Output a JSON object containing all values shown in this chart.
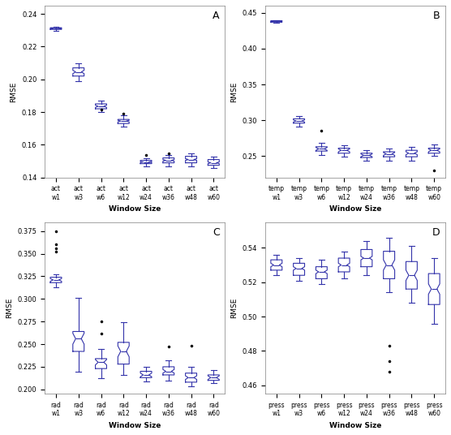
{
  "color": "#3333aa",
  "subplots": {
    "A": {
      "label": "A",
      "xlabel": "Window Size",
      "ylabel": "RMSE",
      "categories": [
        "act\nw1",
        "act\nw3",
        "act\nw6",
        "act\nw12",
        "act\nw24",
        "act\nw36",
        "act\nw48",
        "act\nw60"
      ],
      "boxes": [
        {
          "med": 0.231,
          "q1": 0.2305,
          "q3": 0.2315,
          "whislo": 0.2295,
          "whishi": 0.232,
          "cilo": 0.2308,
          "cihi": 0.2312,
          "fliers": []
        },
        {
          "med": 0.2045,
          "q1": 0.202,
          "q3": 0.207,
          "whislo": 0.199,
          "whishi": 0.21,
          "cilo": 0.2035,
          "cihi": 0.2055,
          "fliers": []
        },
        {
          "med": 0.1835,
          "q1": 0.182,
          "q3": 0.185,
          "whislo": 0.18,
          "whishi": 0.187,
          "cilo": 0.1828,
          "cihi": 0.1842,
          "fliers": [
            0.1815
          ]
        },
        {
          "med": 0.1745,
          "q1": 0.173,
          "q3": 0.1755,
          "whislo": 0.171,
          "whishi": 0.178,
          "cilo": 0.174,
          "cihi": 0.175,
          "fliers": [
            0.179
          ]
        },
        {
          "med": 0.1495,
          "q1": 0.1485,
          "q3": 0.1505,
          "whislo": 0.147,
          "whishi": 0.152,
          "cilo": 0.1492,
          "cihi": 0.1498,
          "fliers": [
            0.154
          ]
        },
        {
          "med": 0.1505,
          "q1": 0.149,
          "q3": 0.152,
          "whislo": 0.147,
          "whishi": 0.154,
          "cilo": 0.15,
          "cihi": 0.151,
          "fliers": [
            0.155
          ]
        },
        {
          "med": 0.151,
          "q1": 0.149,
          "q3": 0.153,
          "whislo": 0.147,
          "whishi": 0.155,
          "cilo": 0.1505,
          "cihi": 0.1515,
          "fliers": []
        },
        {
          "med": 0.149,
          "q1": 0.1475,
          "q3": 0.151,
          "whislo": 0.146,
          "whishi": 0.153,
          "cilo": 0.1485,
          "cihi": 0.1495,
          "fliers": []
        }
      ],
      "ylim": [
        0.14,
        0.245
      ]
    },
    "B": {
      "label": "B",
      "xlabel": "Window Size",
      "ylabel": "RMSE",
      "categories": [
        "temp\nw1",
        "temp\nw3",
        "temp\nw6",
        "temp\nw12",
        "temp\nw24",
        "temp\nw36",
        "temp\nw48",
        "temp\nw60"
      ],
      "boxes": [
        {
          "med": 0.438,
          "q1": 0.437,
          "q3": 0.439,
          "whislo": 0.436,
          "whishi": 0.44,
          "cilo": 0.4375,
          "cihi": 0.4385,
          "fliers": []
        },
        {
          "med": 0.299,
          "q1": 0.296,
          "q3": 0.302,
          "whislo": 0.291,
          "whishi": 0.306,
          "cilo": 0.2975,
          "cihi": 0.3005,
          "fliers": []
        },
        {
          "med": 0.26,
          "q1": 0.257,
          "q3": 0.263,
          "whislo": 0.252,
          "whishi": 0.268,
          "cilo": 0.258,
          "cihi": 0.262,
          "fliers": [
            0.285
          ]
        },
        {
          "med": 0.258,
          "q1": 0.254,
          "q3": 0.261,
          "whislo": 0.249,
          "whishi": 0.265,
          "cilo": 0.256,
          "cihi": 0.26,
          "fliers": []
        },
        {
          "med": 0.251,
          "q1": 0.248,
          "q3": 0.254,
          "whislo": 0.244,
          "whishi": 0.258,
          "cilo": 0.249,
          "cihi": 0.253,
          "fliers": []
        },
        {
          "med": 0.253,
          "q1": 0.249,
          "q3": 0.256,
          "whislo": 0.244,
          "whishi": 0.26,
          "cilo": 0.251,
          "cihi": 0.255,
          "fliers": []
        },
        {
          "med": 0.254,
          "q1": 0.249,
          "q3": 0.258,
          "whislo": 0.243,
          "whishi": 0.263,
          "cilo": 0.252,
          "cihi": 0.256,
          "fliers": []
        },
        {
          "med": 0.258,
          "q1": 0.254,
          "q3": 0.261,
          "whislo": 0.25,
          "whishi": 0.266,
          "cilo": 0.256,
          "cihi": 0.26,
          "fliers": [
            0.23
          ]
        }
      ],
      "ylim": [
        0.22,
        0.46
      ]
    },
    "C": {
      "label": "C",
      "xlabel": "Window Size",
      "ylabel": "RMSE",
      "categories": [
        "rad\nw1",
        "rad\nw3",
        "rad\nw6",
        "rad\nw12",
        "rad\nw24",
        "rad\nw36",
        "rad\nw48",
        "rad\nw60"
      ],
      "boxes": [
        {
          "med": 0.321,
          "q1": 0.318,
          "q3": 0.324,
          "whislo": 0.313,
          "whishi": 0.327,
          "cilo": 0.3195,
          "cihi": 0.3225,
          "fliers": [
            0.352,
            0.356,
            0.36,
            0.375
          ]
        },
        {
          "med": 0.256,
          "q1": 0.242,
          "q3": 0.264,
          "whislo": 0.22,
          "whishi": 0.301,
          "cilo": 0.25,
          "cihi": 0.262,
          "fliers": []
        },
        {
          "med": 0.23,
          "q1": 0.223,
          "q3": 0.234,
          "whislo": 0.212,
          "whishi": 0.245,
          "cilo": 0.227,
          "cihi": 0.233,
          "fliers": [
            0.262,
            0.275
          ]
        },
        {
          "med": 0.242,
          "q1": 0.228,
          "q3": 0.252,
          "whislo": 0.216,
          "whishi": 0.274,
          "cilo": 0.236,
          "cihi": 0.248,
          "fliers": []
        },
        {
          "med": 0.216,
          "q1": 0.213,
          "q3": 0.22,
          "whislo": 0.209,
          "whishi": 0.225,
          "cilo": 0.214,
          "cihi": 0.218,
          "fliers": []
        },
        {
          "med": 0.22,
          "q1": 0.216,
          "q3": 0.225,
          "whislo": 0.21,
          "whishi": 0.232,
          "cilo": 0.218,
          "cihi": 0.222,
          "fliers": [
            0.247
          ]
        },
        {
          "med": 0.213,
          "q1": 0.208,
          "q3": 0.218,
          "whislo": 0.203,
          "whishi": 0.225,
          "cilo": 0.211,
          "cihi": 0.215,
          "fliers": [
            0.248
          ]
        },
        {
          "med": 0.213,
          "q1": 0.21,
          "q3": 0.216,
          "whislo": 0.207,
          "whishi": 0.221,
          "cilo": 0.211,
          "cihi": 0.215,
          "fliers": []
        }
      ],
      "ylim": [
        0.195,
        0.385
      ]
    },
    "D": {
      "label": "D",
      "xlabel": "Window Size",
      "ylabel": "RMSE",
      "categories": [
        "press\nw1",
        "press\nw3",
        "press\nw6",
        "press\nw12",
        "press\nw24",
        "press\nw36",
        "press\nw48",
        "press\nw60"
      ],
      "boxes": [
        {
          "med": 0.53,
          "q1": 0.527,
          "q3": 0.533,
          "whislo": 0.524,
          "whishi": 0.536,
          "cilo": 0.529,
          "cihi": 0.531,
          "fliers": []
        },
        {
          "med": 0.528,
          "q1": 0.524,
          "q3": 0.531,
          "whislo": 0.521,
          "whishi": 0.534,
          "cilo": 0.527,
          "cihi": 0.529,
          "fliers": []
        },
        {
          "med": 0.526,
          "q1": 0.522,
          "q3": 0.529,
          "whislo": 0.519,
          "whishi": 0.533,
          "cilo": 0.525,
          "cihi": 0.527,
          "fliers": []
        },
        {
          "med": 0.53,
          "q1": 0.526,
          "q3": 0.534,
          "whislo": 0.522,
          "whishi": 0.538,
          "cilo": 0.529,
          "cihi": 0.531,
          "fliers": []
        },
        {
          "med": 0.534,
          "q1": 0.529,
          "q3": 0.539,
          "whislo": 0.524,
          "whishi": 0.544,
          "cilo": 0.533,
          "cihi": 0.535,
          "fliers": []
        },
        {
          "med": 0.53,
          "q1": 0.522,
          "q3": 0.538,
          "whislo": 0.514,
          "whishi": 0.546,
          "cilo": 0.527,
          "cihi": 0.533,
          "fliers": [
            0.483,
            0.474,
            0.468
          ]
        },
        {
          "med": 0.524,
          "q1": 0.516,
          "q3": 0.532,
          "whislo": 0.508,
          "whishi": 0.541,
          "cilo": 0.521,
          "cihi": 0.527,
          "fliers": []
        },
        {
          "med": 0.516,
          "q1": 0.507,
          "q3": 0.525,
          "whislo": 0.496,
          "whishi": 0.534,
          "cilo": 0.513,
          "cihi": 0.519,
          "fliers": []
        }
      ],
      "ylim": [
        0.455,
        0.555
      ]
    }
  }
}
